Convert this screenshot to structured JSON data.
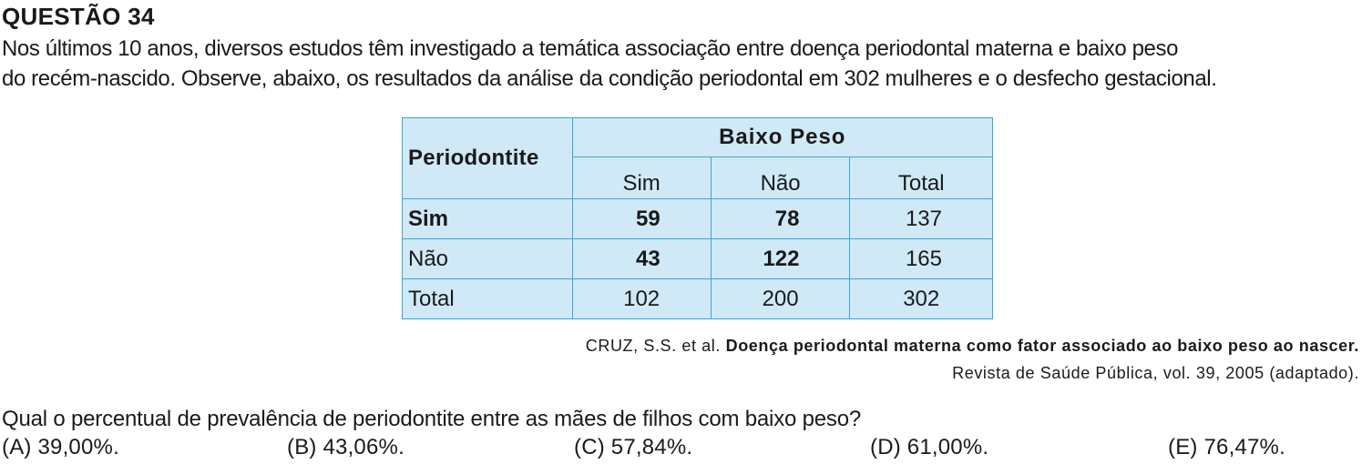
{
  "header": {
    "title": "QUESTÃO 34"
  },
  "intro": {
    "line1": "Nos últimos 10 anos, diversos estudos têm investigado a temática associação entre doença periodontal materna e baixo peso",
    "line2": "do recém-nascido. Observe, abaixo, os resultados da análise da condição periodontal em 302 mulheres e o desfecho gestacional."
  },
  "table": {
    "row_header": "Periodontite",
    "group_header": "Baixo  Peso",
    "columns": [
      "Sim",
      "Não",
      "Total"
    ],
    "rows": [
      {
        "label": "Sim",
        "values": [
          "59",
          "78",
          "137"
        ]
      },
      {
        "label": "Não",
        "values": [
          "43",
          "122",
          "165"
        ]
      },
      {
        "label": "Total",
        "values": [
          "102",
          "200",
          "302"
        ]
      }
    ]
  },
  "source": {
    "authors": "CRUZ, S.S. et al.",
    "title": "Doença periodontal materna como fator associado ao baixo peso ao nascer.",
    "journal": "Revista de Saúde Pública, vol. 39, 2005 (adaptado)."
  },
  "question": {
    "text": "Qual o percentual de prevalência de periodontite entre as mães de filhos com baixo peso?",
    "options": [
      {
        "letter": "(A)",
        "value": "39,00%."
      },
      {
        "letter": "(B)",
        "value": "43,06%."
      },
      {
        "letter": "(C)",
        "value": "57,84%."
      },
      {
        "letter": "(D)",
        "value": "61,00%."
      },
      {
        "letter": "(E)",
        "value": "76,47%."
      }
    ]
  },
  "colors": {
    "table_fill": "#cfe9f7",
    "table_border": "#3aa6d6",
    "text": "#1a1a1a"
  }
}
